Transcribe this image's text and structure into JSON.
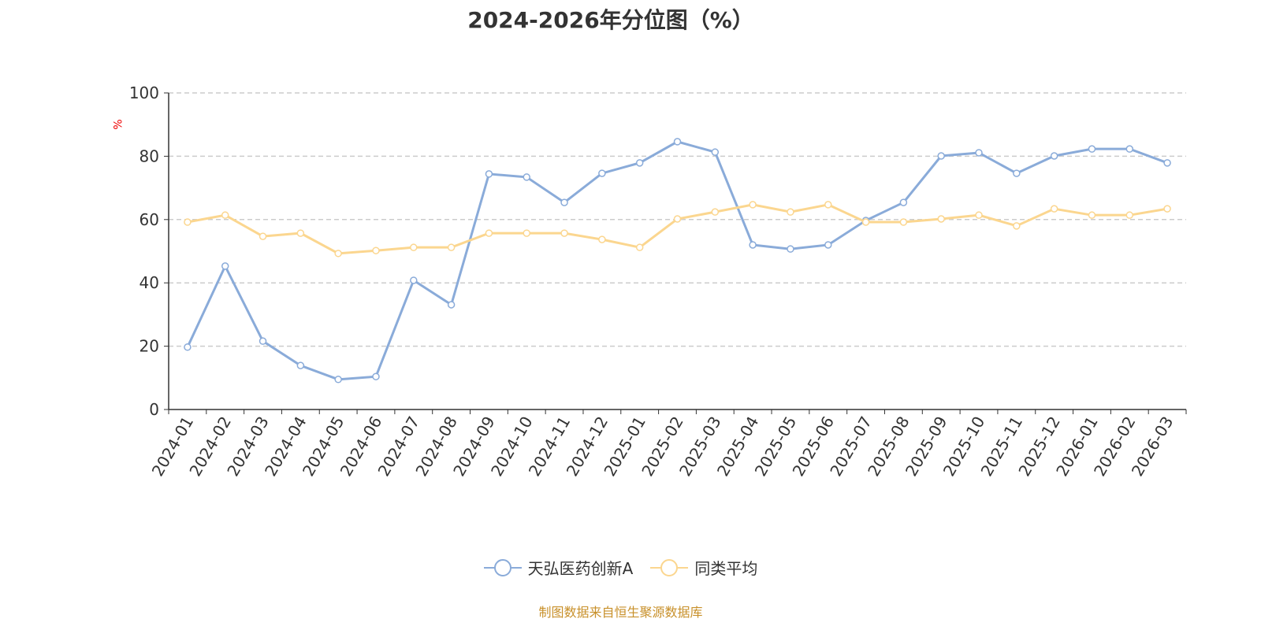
{
  "chart_data": {
    "type": "line",
    "title": "2024-2026年分位图（%）",
    "ylabel": "%",
    "ylim": [
      0,
      100
    ],
    "yticks": [
      0,
      20,
      40,
      60,
      80,
      100
    ],
    "grid": true,
    "legend_placement": "bottom",
    "categories": [
      "2024-01",
      "2024-02",
      "2024-03",
      "2024-04",
      "2024-05",
      "2024-06",
      "2024-07",
      "2024-08",
      "2024-09",
      "2024-10",
      "2024-11",
      "2024-12",
      "2025-01",
      "2025-02",
      "2025-03",
      "2025-04",
      "2025-05",
      "2025-06",
      "2025-07",
      "2025-08",
      "2025-09",
      "2025-10",
      "2025-11",
      "2025-12",
      "2026-01",
      "2026-02",
      "2026-03"
    ],
    "series": [
      {
        "name": "天弘医药创新A",
        "color": "#8aabd9",
        "values": [
          19.7,
          45.3,
          21.6,
          13.9,
          9.5,
          10.4,
          40.8,
          33.1,
          74.4,
          73.4,
          65.4,
          74.6,
          77.9,
          84.6,
          81.3,
          52.0,
          50.7,
          52.0,
          59.7,
          65.4,
          80.1,
          81.1,
          74.6,
          80.1,
          82.3,
          82.3,
          77.9
        ]
      },
      {
        "name": "同类平均",
        "color": "#fbd68f",
        "values": [
          59.2,
          61.4,
          54.7,
          55.7,
          49.3,
          50.2,
          51.2,
          51.2,
          55.7,
          55.7,
          55.7,
          53.7,
          51.2,
          60.2,
          62.4,
          64.7,
          62.4,
          64.7,
          59.2,
          59.2,
          60.2,
          61.4,
          58.0,
          63.4,
          61.4,
          61.4,
          63.4
        ]
      }
    ]
  },
  "source": "制图数据来自恒生聚源数据库"
}
